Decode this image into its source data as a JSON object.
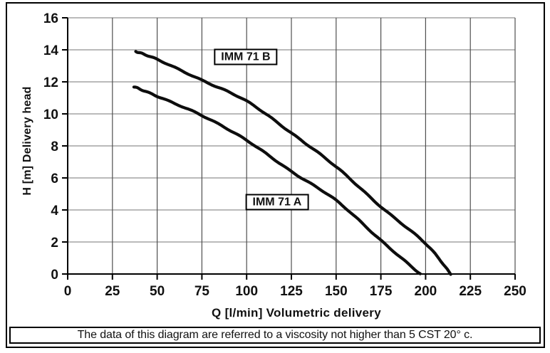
{
  "chart_data": {
    "type": "line",
    "title": "",
    "xlabel": "Q [l/min] Volumetric delivery",
    "ylabel": "H [m] Delivery head",
    "xlim": [
      0,
      250
    ],
    "ylim": [
      0,
      16
    ],
    "xticks": [
      0,
      25,
      50,
      75,
      100,
      125,
      150,
      175,
      200,
      225,
      250
    ],
    "yticks": [
      0,
      2,
      4,
      6,
      8,
      10,
      12,
      14,
      16
    ],
    "grid": true,
    "legend_position": "none",
    "series": [
      {
        "name": "IMM 71 B",
        "points": [
          [
            38,
            13.9
          ],
          [
            50,
            13.4
          ],
          [
            75,
            12.1
          ],
          [
            100,
            10.8
          ],
          [
            125,
            8.8
          ],
          [
            150,
            6.7
          ],
          [
            175,
            4.2
          ],
          [
            200,
            1.9
          ],
          [
            214,
            0
          ]
        ]
      },
      {
        "name": "IMM 71 A",
        "points": [
          [
            37,
            11.7
          ],
          [
            50,
            11.1
          ],
          [
            75,
            9.9
          ],
          [
            100,
            8.35
          ],
          [
            125,
            6.4
          ],
          [
            150,
            4.6
          ],
          [
            175,
            2.1
          ],
          [
            197,
            0
          ]
        ]
      }
    ],
    "annotations": [
      {
        "text": "IMM 71 B",
        "q": 99.5,
        "h": 13.55
      },
      {
        "text": "IMM 71 A",
        "q": 117,
        "h": 4.5
      }
    ]
  },
  "note": {
    "text": "The data of this diagram are referred to a viscosity not higher than 5 CST 20° c."
  },
  "colors": {
    "curve": "#0d0d0d",
    "grid_horizontal": "#919191",
    "grid_vertical": "#4f4f4f",
    "axis": "#000000",
    "text": "#111111",
    "background": "#ffffff"
  }
}
